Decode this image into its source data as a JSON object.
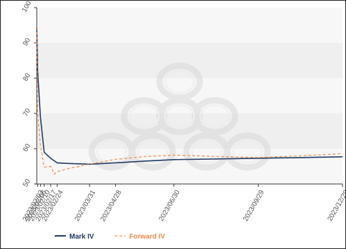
{
  "chart_data": {
    "type": "line",
    "title": "",
    "xlabel": "",
    "ylabel": "",
    "ylim": [
      50,
      100
    ],
    "y_ticks": [
      50,
      60,
      70,
      80,
      90,
      100
    ],
    "x_tick_labels": [
      "2023/02/03",
      "2023/02/06",
      "2023/02/10",
      "2023/02/17",
      "2023/02/24",
      "2023/03/31",
      "2023/04/28",
      "2023/06/30",
      "2023/09/29",
      "2023/12/29"
    ],
    "x_tick_dates": [
      "2023-02-03",
      "2023-02-06",
      "2023-02-10",
      "2023-02-17",
      "2023-02-24",
      "2023-03-31",
      "2023-04-28",
      "2023-06-30",
      "2023-09-29",
      "2023-12-29"
    ],
    "x_range": [
      "2023-02-02",
      "2023-12-29"
    ],
    "grid": "horizontal bands",
    "legend_position": "bottom-left",
    "series": [
      {
        "name": "Mark IV",
        "color": "#1f3864",
        "style": "solid",
        "points": [
          [
            "2023-02-02",
            94.5
          ],
          [
            "2023-02-03",
            82.0
          ],
          [
            "2023-02-06",
            69.0
          ],
          [
            "2023-02-10",
            59.0
          ],
          [
            "2023-02-17",
            57.3
          ],
          [
            "2023-02-24",
            56.0
          ],
          [
            "2023-03-10",
            55.8
          ],
          [
            "2023-03-31",
            55.6
          ],
          [
            "2023-04-28",
            56.0
          ],
          [
            "2023-05-31",
            56.5
          ],
          [
            "2023-06-30",
            56.9
          ],
          [
            "2023-08-15",
            57.1
          ],
          [
            "2023-09-29",
            57.3
          ],
          [
            "2023-11-15",
            57.5
          ],
          [
            "2023-12-29",
            57.7
          ]
        ]
      },
      {
        "name": "Forward IV",
        "color": "#f08a4b",
        "style": "dashed",
        "points": [
          [
            "2023-02-02",
            94.5
          ],
          [
            "2023-02-03",
            70.0
          ],
          [
            "2023-02-06",
            61.0
          ],
          [
            "2023-02-10",
            54.8
          ],
          [
            "2023-02-17",
            55.0
          ],
          [
            "2023-02-21",
            52.8
          ],
          [
            "2023-02-24",
            53.5
          ],
          [
            "2023-03-10",
            54.5
          ],
          [
            "2023-03-31",
            55.6
          ],
          [
            "2023-04-28",
            57.0
          ],
          [
            "2023-05-31",
            57.8
          ],
          [
            "2023-06-30",
            58.2
          ],
          [
            "2023-08-15",
            57.8
          ],
          [
            "2023-09-29",
            57.5
          ],
          [
            "2023-11-15",
            58.0
          ],
          [
            "2023-12-29",
            58.6
          ]
        ]
      }
    ]
  }
}
